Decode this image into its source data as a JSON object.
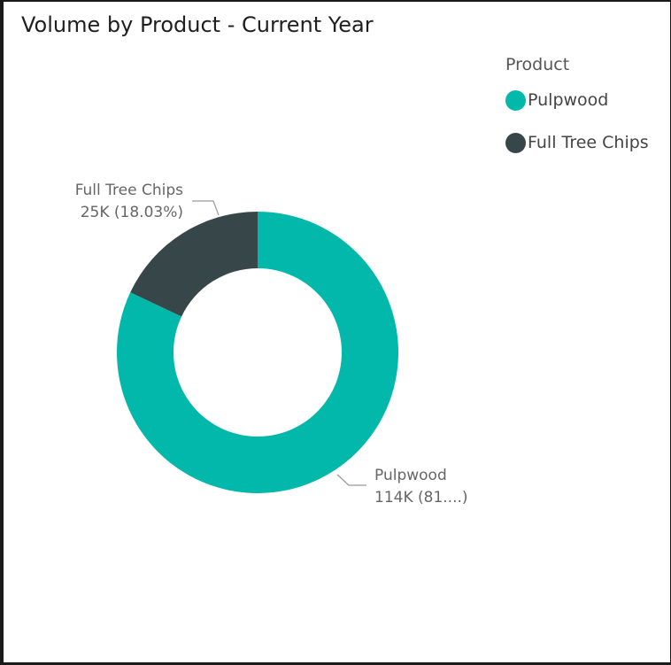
{
  "chart_data": {
    "type": "pie",
    "variant": "donut",
    "title": "Volume by Product - Current Year",
    "legend": {
      "title": "Product",
      "placement": "top-right"
    },
    "categories": [
      "Pulpwood",
      "Full Tree Chips"
    ],
    "values": [
      114,
      25
    ],
    "value_unit": "K",
    "slices": [
      {
        "name": "Pulpwood",
        "value": 114,
        "percent": 81.97,
        "color": "#01B8AA",
        "data_label": "114K (81....)"
      },
      {
        "name": "Full Tree Chips",
        "value": 25,
        "percent": 18.03,
        "color": "#374649",
        "data_label": "25K (18.03%)"
      }
    ]
  }
}
